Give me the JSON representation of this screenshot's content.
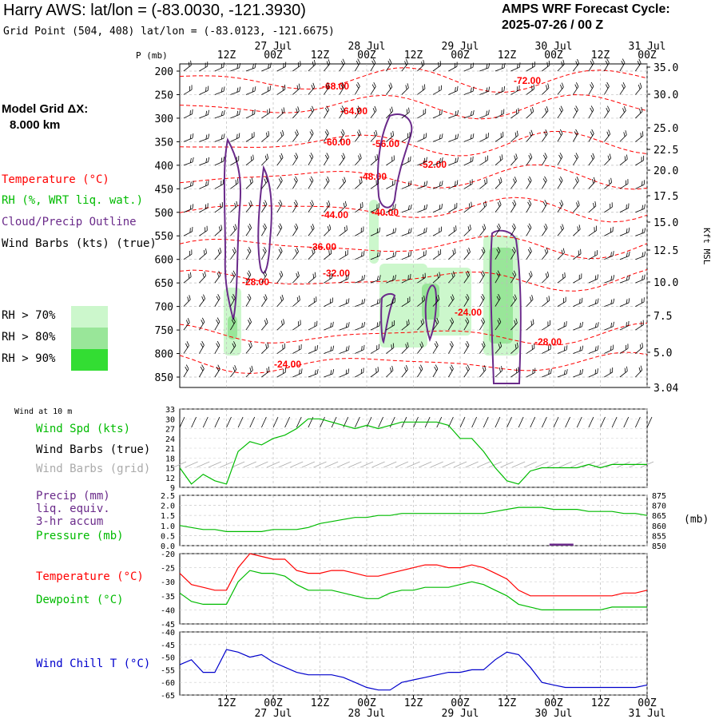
{
  "header": {
    "title": "Harry AWS:  lat/lon = (-83.0030, -121.3930)",
    "subtitle": "Grid Point (504, 408) lat/lon = (-83.0123, -121.6675)",
    "cycle_line1": "AMPS WRF Forecast Cycle:",
    "cycle_line2": "2025-07-26 / 00  Z",
    "grid_label": "Model Grid ΔX:",
    "grid_value": "8.000 km"
  },
  "colors": {
    "temperature": "#ff0000",
    "rh": "#00bb00",
    "cloud": "#6a2a8a",
    "wind_grid": "#aaaaaa",
    "wind_chill": "#0000cc",
    "rh70": "#ccf7cc",
    "rh80": "#99e699",
    "rh90": "#33dd33"
  },
  "time_axis": {
    "top_row1": [
      "12Z",
      "00Z",
      "12Z",
      "00Z",
      "12Z",
      "00Z",
      "12Z",
      "00Z",
      "12Z",
      "00Z"
    ],
    "top_row2": [
      "27 Jul",
      "28 Jul",
      "29 Jul",
      "30 Jul",
      "31 Jul"
    ],
    "bottom_row1": [
      "12Z",
      "00Z",
      "12Z",
      "00Z",
      "12Z",
      "00Z",
      "12Z",
      "00Z",
      "12Z",
      "00Z"
    ],
    "bottom_row2": [
      "27 Jul",
      "28 Jul",
      "29 Jul",
      "30 Jul",
      "31 Jul"
    ]
  },
  "cross_section": {
    "p_label": "P (mb)",
    "pressure_ticks": [
      "200",
      "250",
      "300",
      "350",
      "400",
      "450",
      "500",
      "550",
      "600",
      "650",
      "700",
      "750",
      "800",
      "850"
    ],
    "height_ticks": [
      "35.0",
      "30.0",
      "25.0",
      "22.5",
      "20.0",
      "17.5",
      "15.0",
      "12.5",
      "10.0",
      "7.5",
      "5.0",
      "3.04"
    ],
    "height_label": "Kft MSL",
    "legend": {
      "temperature": "Temperature (°C)",
      "rh": "RH (%, WRT liq. wat.)",
      "cloud": "Cloud/Precip Outline",
      "wind": "Wind Barbs (kts) (true)",
      "rh70": "RH > 70%",
      "rh80": "RH > 80%",
      "rh90": "RH > 90%"
    },
    "temperature_labels": [
      "-68.00",
      "-72.00",
      "-64.00",
      "-60.00",
      "-56.00",
      "-52.00",
      "-48.00",
      "-44.00",
      "-40.00",
      "-36.00",
      "-32.00",
      "-28.00",
      "-24.00",
      "-28.00",
      "-24.00"
    ]
  },
  "wind_panel": {
    "title": "Wind at 10 m",
    "spd_label": "Wind Spd (kts)",
    "barbs_true_label": "Wind Barbs (true)",
    "barbs_grid_label": "Wind Barbs (grid)",
    "ticks": [
      "33",
      "30",
      "27",
      "24",
      "21",
      "18",
      "15",
      "12",
      "9"
    ]
  },
  "precip_panel": {
    "label1": "Precip (mm)",
    "label2": "liq. equiv.",
    "label3": "3-hr accum",
    "label4": "Pressure (mb)",
    "left_ticks": [
      "2.5",
      "2.0",
      "1.5",
      "1.0",
      "0.5",
      "0.0"
    ],
    "right_ticks": [
      "875",
      "870",
      "865",
      "860",
      "855",
      "850"
    ],
    "right_unit": "(mb)"
  },
  "temp_panel": {
    "temp_label": "Temperature (°C)",
    "dew_label": "Dewpoint (°C)",
    "ticks": [
      "-20",
      "-25",
      "-30",
      "-35",
      "-40",
      "-45"
    ]
  },
  "chill_panel": {
    "label": "Wind Chill T (°C)",
    "ticks": [
      "-40",
      "-45",
      "-50",
      "-55",
      "-60",
      "-65"
    ]
  },
  "chart_data": {
    "type": "line",
    "x_hours": [
      0,
      3,
      6,
      9,
      12,
      15,
      18,
      21,
      24,
      27,
      30,
      33,
      36,
      39,
      42,
      45,
      48,
      51,
      54,
      57,
      60,
      63,
      66,
      69,
      72,
      75,
      78,
      81,
      84,
      87,
      90,
      93,
      96,
      99,
      102,
      105,
      108,
      111,
      114,
      117,
      120
    ],
    "x_start": "2025-07-26 00Z",
    "wind_speed_kts": [
      15,
      10,
      13,
      11,
      10,
      20,
      23,
      22,
      24,
      25,
      27,
      30,
      30,
      29,
      28,
      27,
      28,
      27,
      28,
      29,
      29,
      29,
      29,
      28,
      24,
      24,
      20,
      15,
      11,
      10,
      14,
      15,
      15,
      15,
      15,
      16,
      15,
      16,
      16,
      16,
      16
    ],
    "pressure_mb": [
      860,
      859,
      858,
      858,
      857,
      857,
      857,
      857,
      858,
      858,
      858,
      859,
      861,
      862,
      863,
      864,
      864,
      865,
      865,
      866,
      866,
      866,
      866,
      866,
      866,
      866,
      866,
      867,
      868,
      869,
      869,
      869,
      868,
      868,
      868,
      867,
      867,
      867,
      866,
      866,
      865
    ],
    "precip_mm": [
      {
        "x": 98,
        "value": 0.1
      }
    ],
    "temperature_c": [
      -27,
      -31,
      -32,
      -33,
      -33,
      -25,
      -20,
      -21,
      -22,
      -22,
      -26,
      -27,
      -27,
      -26,
      -26,
      -27,
      -28,
      -28,
      -27,
      -26,
      -25,
      -24,
      -24,
      -25,
      -25,
      -24,
      -25,
      -27,
      -29,
      -33,
      -35,
      -35,
      -35,
      -35,
      -35,
      -35,
      -35,
      -35,
      -34,
      -34,
      -33
    ],
    "dewpoint_c": [
      -34,
      -37,
      -38,
      -38,
      -38,
      -30,
      -26,
      -27,
      -27,
      -28,
      -31,
      -33,
      -33,
      -33,
      -34,
      -35,
      -36,
      -36,
      -34,
      -33,
      -33,
      -32,
      -32,
      -32,
      -31,
      -30,
      -31,
      -33,
      -35,
      -38,
      -39,
      -40,
      -40,
      -40,
      -40,
      -40,
      -40,
      -39,
      -39,
      -39,
      -39
    ],
    "wind_chill_c": [
      -53,
      -51,
      -56,
      -56,
      -47,
      -48,
      -50,
      -49,
      -52,
      -54,
      -56,
      -57,
      -57,
      -57,
      -58,
      -60,
      -62,
      -63,
      -63,
      -60,
      -59,
      -58,
      -57,
      -56,
      -56,
      -55,
      -55,
      -51,
      -48,
      -49,
      -54,
      -60,
      -61,
      -62,
      -62,
      -62,
      -62,
      -62,
      -62,
      -62,
      -61
    ],
    "series": [
      {
        "name": "Wind Spd (kts)",
        "values_key": "wind_speed_kts"
      },
      {
        "name": "Pressure (mb)",
        "values_key": "pressure_mb"
      },
      {
        "name": "Temperature (°C)",
        "values_key": "temperature_c"
      },
      {
        "name": "Dewpoint (°C)",
        "values_key": "dewpoint_c"
      },
      {
        "name": "Wind Chill T (°C)",
        "values_key": "wind_chill_c"
      }
    ],
    "ylim_wind": [
      9,
      33
    ],
    "ylim_precip": [
      0,
      2.5
    ],
    "ylim_pressure": [
      850,
      875
    ],
    "ylim_temp": [
      -45,
      -20
    ],
    "ylim_chill": [
      -65,
      -40
    ],
    "grid": true
  }
}
